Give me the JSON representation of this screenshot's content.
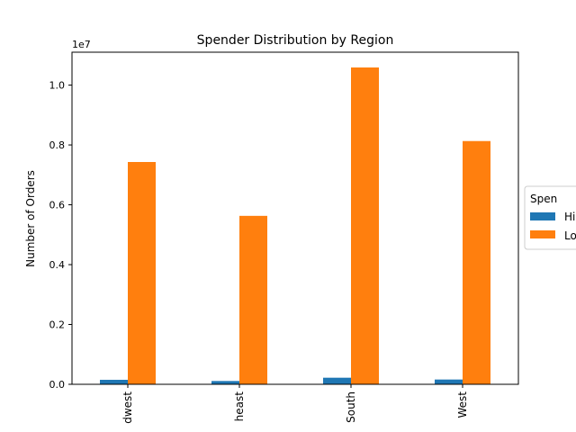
{
  "chart_data": {
    "type": "bar",
    "title": "Spender Distribution by Region",
    "xlabel": "",
    "ylabel": "Number of Orders",
    "y_multiplier_label": "1e7",
    "categories": [
      "Midwest",
      "Northeast",
      "South",
      "West"
    ],
    "category_labels_visible": [
      "dwest",
      "heast",
      "South",
      "West"
    ],
    "series": [
      {
        "name": "Hi",
        "color": "#1f77b4",
        "values": [
          150000,
          110000,
          220000,
          160000
        ]
      },
      {
        "name": "Lo",
        "color": "#ff7f0e",
        "values": [
          7430000,
          5630000,
          10590000,
          8130000
        ]
      }
    ],
    "ylim": [
      0,
      11100000
    ],
    "yticks": [
      0,
      2000000,
      4000000,
      6000000,
      8000000,
      10000000
    ],
    "ytick_labels": [
      "0.0",
      "0.2",
      "0.4",
      "0.6",
      "0.8",
      "1.0"
    ],
    "legend": {
      "title": "Spen",
      "placement": "right, outside"
    },
    "grid": false
  }
}
